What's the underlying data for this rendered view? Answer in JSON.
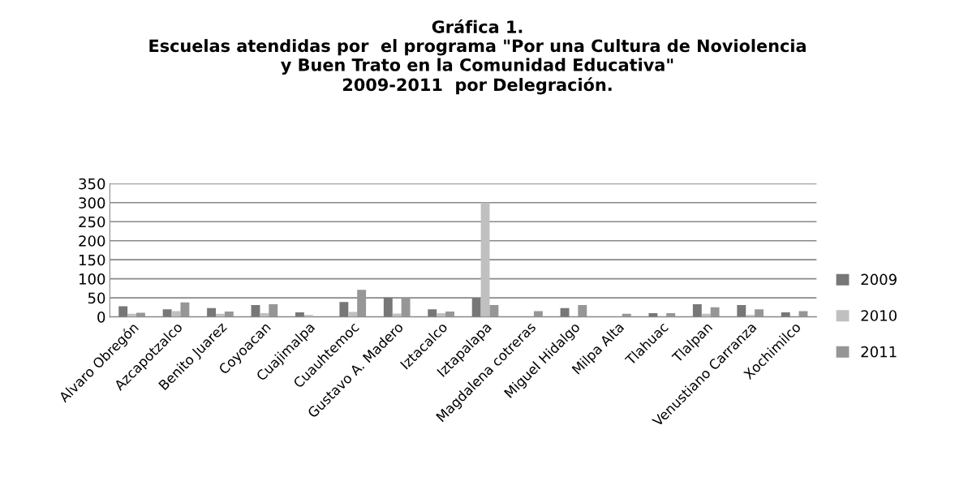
{
  "chart_data": {
    "type": "bar",
    "title": "Gráfica 1.\nEscuelas atendidas por  el programa \"Por una Cultura de Noviolencia\ny Buen Trato en la Comunidad Educativa\"\n2009-2011  por Delegración.",
    "categories": [
      "Alvaro Obregón",
      "Azcapotzalco",
      "Benito Juarez",
      "Coyoacan",
      "Cuajimalpa",
      "Cuauhtemoc",
      "Gustavo A. Madero",
      "Iztacalco",
      "Iztapalapa",
      "Magdalena cotreras",
      "Miguel Hidalgo",
      "Milpa Alta",
      "Tlahuac",
      "Tlalpan",
      "Venustiano Carranza",
      "Xochimilco"
    ],
    "series": [
      {
        "name": "2009",
        "color": "#777777",
        "values": [
          28,
          20,
          23,
          31,
          12,
          39,
          51,
          20,
          50,
          0,
          23,
          0,
          10,
          33,
          31,
          12
        ]
      },
      {
        "name": "2010",
        "color": "#c0c0c0",
        "values": [
          8,
          15,
          8,
          10,
          5,
          13,
          9,
          10,
          300,
          0,
          0,
          0,
          0,
          8,
          5,
          0
        ]
      },
      {
        "name": "2011",
        "color": "#969696",
        "values": [
          11,
          38,
          14,
          33,
          0,
          71,
          51,
          14,
          31,
          15,
          31,
          8,
          10,
          25,
          20,
          15
        ]
      }
    ],
    "ylim": [
      0,
      350
    ],
    "yticks": [
      0,
      50,
      100,
      150,
      200,
      250,
      300,
      350
    ],
    "grid": "y",
    "legend": "right"
  }
}
